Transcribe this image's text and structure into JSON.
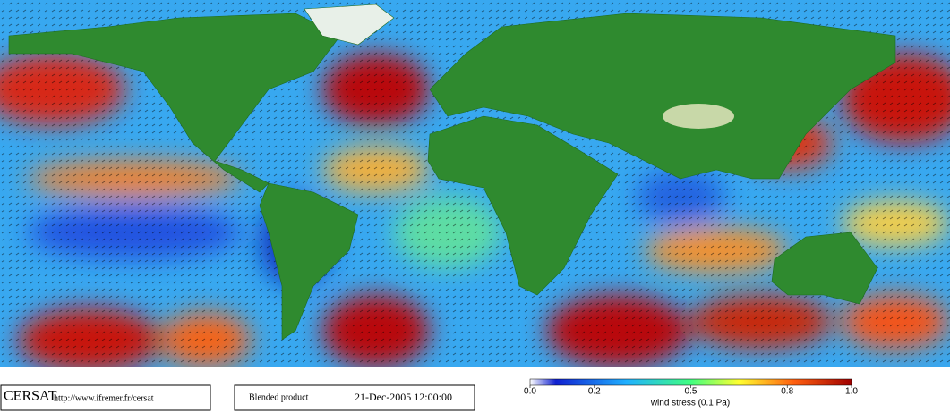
{
  "logo": "CERSAT",
  "url": "http://www.ifremer.fr/cersat",
  "product": "Blended product",
  "timestamp": "21-Dec-2005 12:00:00",
  "colorbar": {
    "label": "wind stress (0.1 Pa)",
    "lim": [
      0,
      1
    ],
    "ticks": [
      {
        "value": 0,
        "label": "0.0"
      },
      0.2,
      0.5,
      0.8,
      {
        "value": 1,
        "label": "1.0"
      }
    ]
  }
}
